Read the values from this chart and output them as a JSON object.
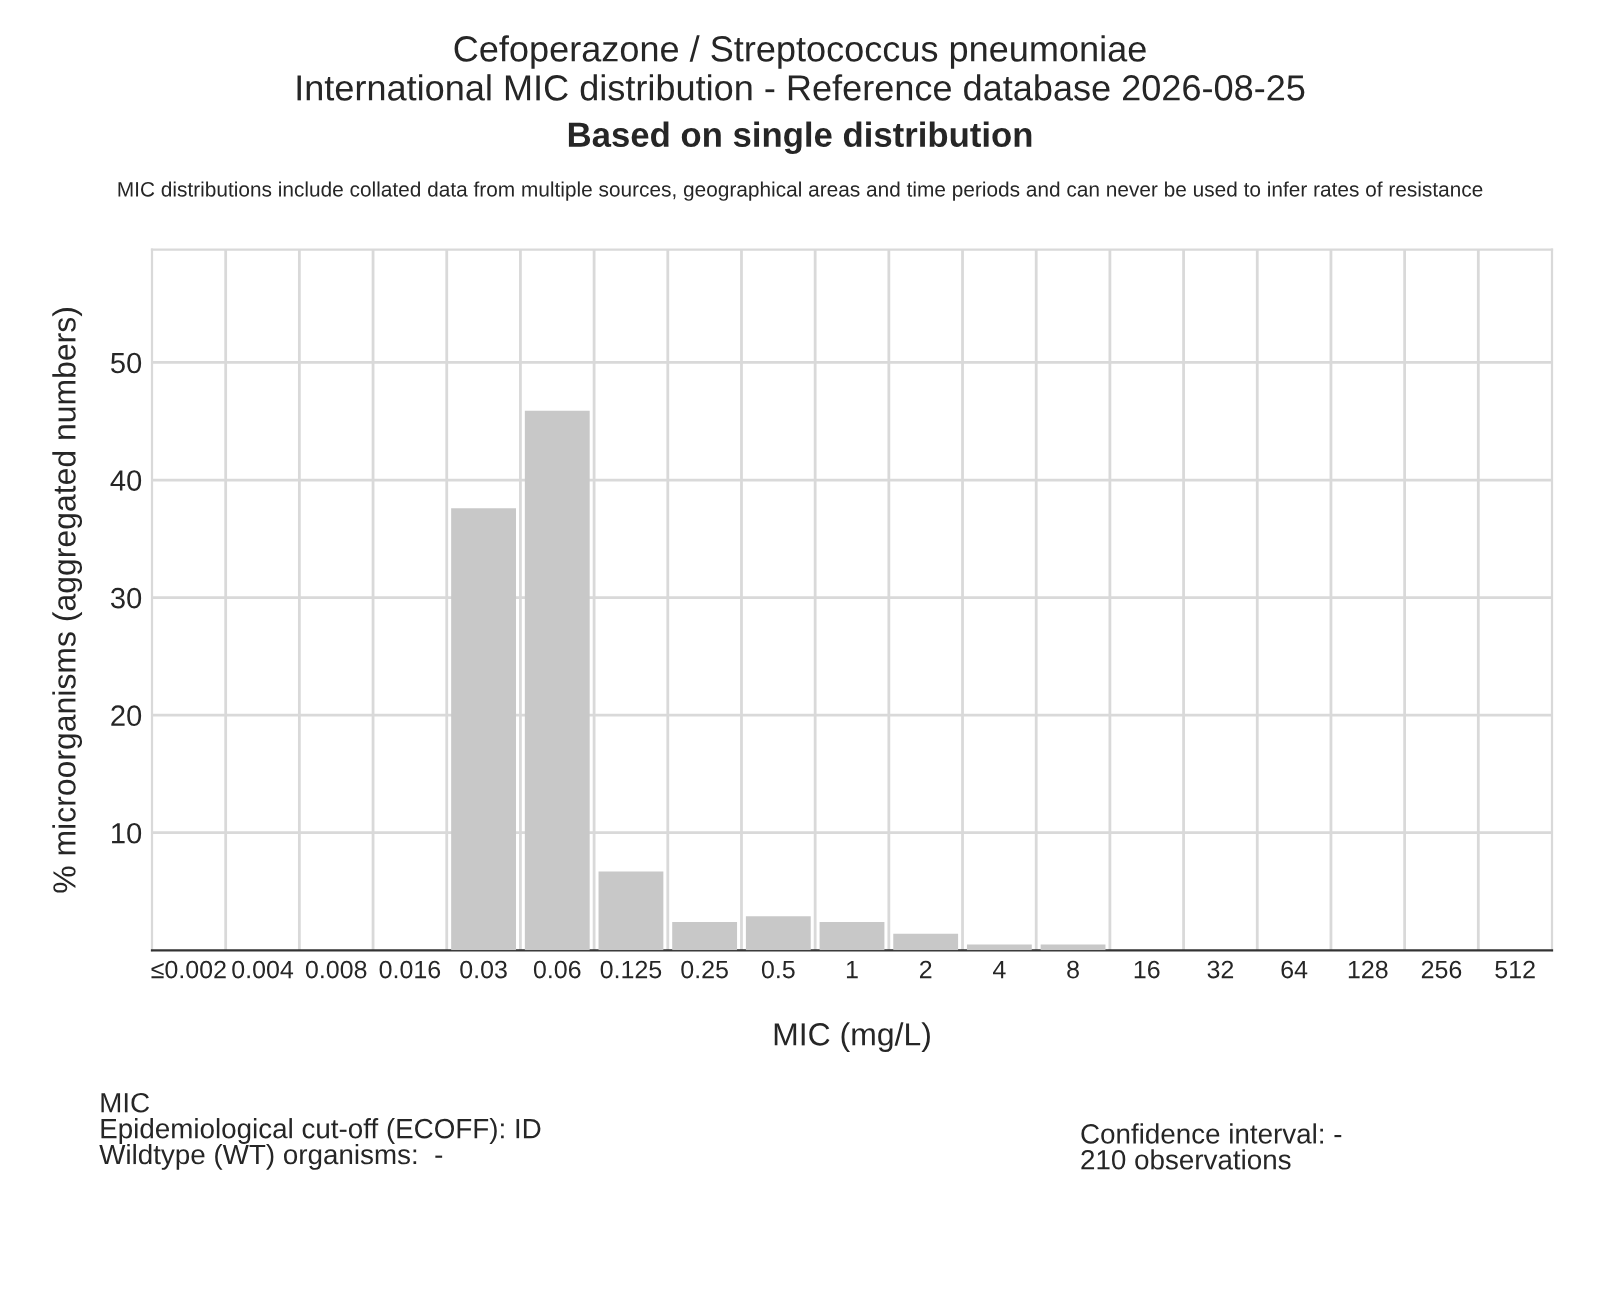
{
  "chart_data": {
    "type": "bar",
    "title": "Cefoperazone / Streptococcus pneumoniae",
    "subtitle": "International MIC distribution - Reference database 2026-08-25",
    "xlabel": "MIC (mg/L)",
    "ylabel": "% microorganisms (aggregated numbers)",
    "categories": [
      "≤0.002",
      "0.004",
      "0.008",
      "0.016",
      "0.03",
      "0.06",
      "0.125",
      "0.25",
      "0.5",
      "1",
      "2",
      "4",
      "8",
      "16",
      "32",
      "64",
      "128",
      "256",
      "512"
    ],
    "values": [
      0,
      0,
      0,
      0,
      37.6,
      45.9,
      6.7,
      2.4,
      2.9,
      2.4,
      1.4,
      0.5,
      0.5,
      0,
      0,
      0,
      0,
      0,
      0
    ],
    "color": "#c8c8c8",
    "ylim": [
      0,
      59.6
    ],
    "yticks": [
      10,
      20,
      30,
      40,
      50
    ],
    "grid": true,
    "annotations": [
      "Based on single distribution",
      "MIC distributions include collated data from multiple sources, geographical areas and time periods and can never be used to infer rates of resistance",
      "MIC\nEpidemiological cut-off (ECOFF): ID\nWildtype (WT) organisms:  -",
      "Confidence interval: -\n210 observations"
    ]
  }
}
